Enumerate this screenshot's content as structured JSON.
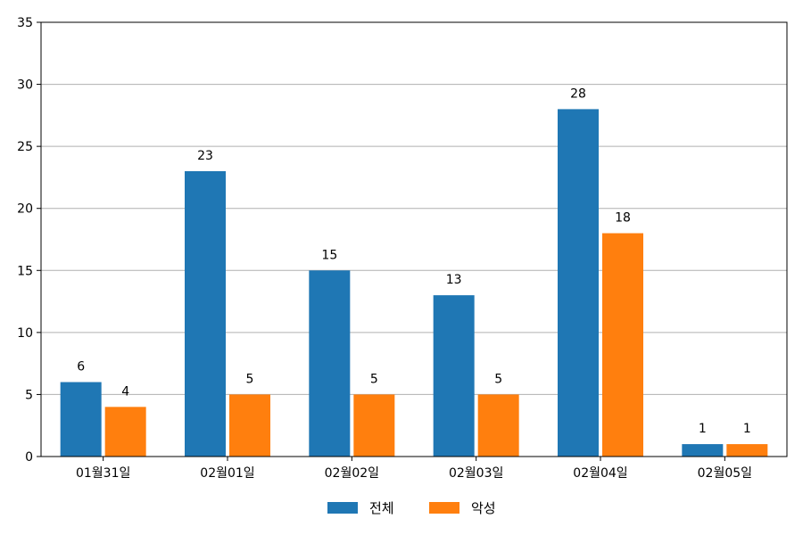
{
  "chart_data": {
    "type": "bar",
    "title": "",
    "xlabel": "",
    "ylabel": "",
    "categories": [
      "01월31일",
      "02월01일",
      "02월02일",
      "02월03일",
      "02월04일",
      "02월05일"
    ],
    "series": [
      {
        "name": "전체",
        "values": [
          6,
          23,
          15,
          13,
          28,
          1
        ],
        "color": "#1f77b4"
      },
      {
        "name": "악성",
        "values": [
          4,
          5,
          5,
          5,
          18,
          1
        ],
        "color": "#ff7f0e"
      }
    ],
    "ylim": [
      0,
      35
    ],
    "yticks": [
      0,
      5,
      10,
      15,
      20,
      25,
      30,
      35
    ],
    "grid": "horizontal",
    "data_labels": true,
    "legend_position": "bottom-center"
  }
}
